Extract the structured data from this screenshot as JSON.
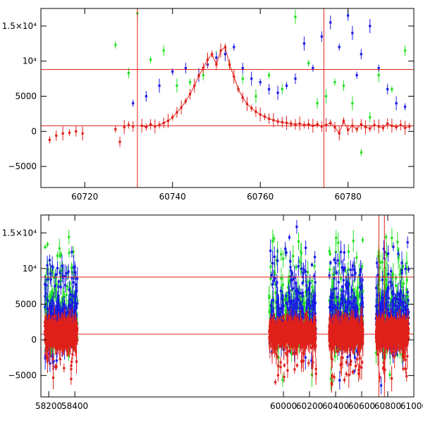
{
  "chart_data": [
    {
      "type": "scatter",
      "title": "",
      "xlabel": "",
      "ylabel": "",
      "xlim": [
        60710,
        60795
      ],
      "ylim": [
        -8000,
        17500
      ],
      "xticks": [
        60720,
        60740,
        60760,
        60780
      ],
      "xtick_labels": [
        "60720",
        "60740",
        "60760",
        "60780"
      ],
      "yticks": [
        -5000,
        0,
        5000,
        10000,
        15000
      ],
      "ytick_labels": [
        "−5000",
        "0",
        "5000",
        "10⁴",
        "1.5×10⁴"
      ],
      "hlines": [
        800,
        8800
      ],
      "vlines": [
        60732,
        60774.5
      ],
      "series": [
        {
          "name": "red",
          "color": "#e0201a",
          "x": [
            60712,
            60713.5,
            60715,
            60716.5,
            60718,
            60719.5,
            60727,
            60728,
            60729,
            60730,
            60731,
            60733,
            60734,
            60735,
            60736,
            60737,
            60738,
            60739,
            60740,
            60741,
            60742,
            60743,
            60744,
            60745,
            60746,
            60747,
            60748,
            60749,
            60750,
            60751,
            60752,
            60753,
            60754,
            60755,
            60756,
            60757,
            60758,
            60759,
            60760,
            60761,
            60762,
            60763,
            60764,
            60765,
            60766,
            60767,
            60768,
            60769,
            60770,
            60771,
            60772,
            60773,
            60774,
            60775,
            60776,
            60777,
            60778,
            60779,
            60780,
            60781,
            60782,
            60783,
            60784,
            60785,
            60786,
            60787,
            60788,
            60789,
            60790,
            60791,
            60792,
            60793,
            60794
          ],
          "y": [
            -1200,
            -600,
            -300,
            -200,
            0,
            -300,
            300,
            -1500,
            600,
            900,
            700,
            800,
            600,
            1000,
            700,
            900,
            1200,
            1500,
            2000,
            2700,
            3400,
            4300,
            5300,
            6500,
            7900,
            9000,
            10200,
            11000,
            9500,
            11500,
            12000,
            9500,
            7800,
            6000,
            4800,
            3900,
            3300,
            2800,
            2400,
            2100,
            1800,
            1600,
            1400,
            1300,
            1200,
            1100,
            1000,
            1100,
            900,
            1000,
            800,
            1000,
            700,
            900,
            1200,
            600,
            -300,
            1500,
            200,
            800,
            300,
            1000,
            600,
            400,
            900,
            700,
            500,
            1100,
            800,
            600,
            900,
            500,
            700
          ]
        },
        {
          "name": "blue",
          "color": "#1a1ae6",
          "x": [
            60731,
            60734,
            60737,
            60740,
            60743,
            60746,
            60748,
            60750,
            60752,
            60754,
            60756,
            60758,
            60760,
            60762,
            60764,
            60766,
            60768,
            60770,
            60772,
            60774,
            60776,
            60778,
            60780,
            60781,
            60782,
            60783,
            60785,
            60787,
            60789,
            60791,
            60793
          ],
          "y": [
            4000,
            5000,
            6500,
            8500,
            9000,
            8000,
            9500,
            10500,
            11000,
            12000,
            9000,
            7500,
            7000,
            6000,
            5500,
            6500,
            7500,
            12500,
            9000,
            13500,
            15500,
            12000,
            16500,
            14000,
            8000,
            11000,
            15000,
            9000,
            6000,
            4000,
            3500
          ]
        },
        {
          "name": "green",
          "color": "#22e022",
          "x": [
            60727,
            60730,
            60732,
            60735,
            60738,
            60741,
            60744,
            60747,
            60750,
            60753,
            60756,
            60759,
            60762,
            60765,
            60768,
            60771,
            60773,
            60775,
            60777,
            60779,
            60781,
            60783,
            60785,
            60787,
            60790,
            60793
          ],
          "y": [
            12300,
            8300,
            16800,
            10200,
            11500,
            6500,
            7000,
            8000,
            10500,
            9500,
            7500,
            5000,
            8000,
            6000,
            16300,
            9700,
            4000,
            5000,
            7000,
            6500,
            4000,
            -3000,
            2000,
            8000,
            6000,
            11500
          ]
        }
      ]
    },
    {
      "type": "scatter",
      "title": "",
      "xlabel": "",
      "ylabel": "",
      "xlim": [
        58140,
        61000
      ],
      "ylim": [
        -8000,
        17500
      ],
      "xticks": [
        58200,
        58400,
        60000,
        60200,
        60400,
        60600,
        60800,
        61000
      ],
      "xtick_labels": [
        "58200",
        "58400",
        "60000",
        "60200",
        "60400",
        "60600",
        "60800",
        "61000"
      ],
      "yticks": [
        -5000,
        0,
        5000,
        10000,
        15000
      ],
      "ytick_labels": [
        "−5000",
        "0",
        "5000",
        "10⁴",
        "1.5×10⁴"
      ],
      "hlines": [
        800,
        8800
      ],
      "vlines": [
        60732,
        60774.5
      ],
      "seasons": [
        {
          "start": 58170,
          "end": 58420
        },
        {
          "start": 59890,
          "end": 60250
        },
        {
          "start": 60350,
          "end": 60610
        },
        {
          "start": 60710,
          "end": 60960
        }
      ]
    }
  ]
}
